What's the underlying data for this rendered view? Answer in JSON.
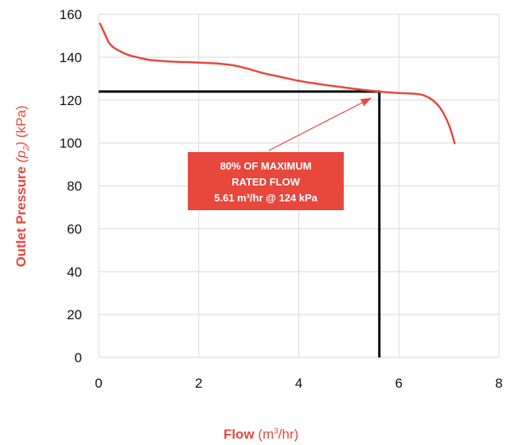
{
  "chart_data": {
    "type": "line",
    "xlabel_bold": "Flow",
    "xlabel_unit_pre": "(m",
    "xlabel_unit_sup": "3",
    "xlabel_unit_post": "/hr)",
    "ylabel_bold": "Outlet Pressure",
    "ylabel_sym_open": "(",
    "ylabel_sym_p": "p",
    "ylabel_sym_sub": "2",
    "ylabel_sym_close": ")",
    "ylabel_unit": "(kPa)",
    "xlim": [
      0,
      8
    ],
    "ylim": [
      0,
      160
    ],
    "x_ticks": [
      "0",
      "2",
      "4",
      "6",
      "8"
    ],
    "y_ticks": [
      "0",
      "20",
      "40",
      "60",
      "80",
      "100",
      "120",
      "140",
      "160"
    ],
    "grid": true,
    "series": [
      {
        "color": "#e8473c",
        "x": [
          0.02,
          0.1,
          0.2,
          0.3,
          0.45,
          0.6,
          0.8,
          1.0,
          1.3,
          1.6,
          2.0,
          2.4,
          2.7,
          3.0,
          3.3,
          3.6,
          4.0,
          4.4,
          4.8,
          5.2,
          5.6,
          6.0,
          6.3,
          6.5,
          6.7,
          6.85,
          7.0,
          7.12
        ],
        "y": [
          156,
          152,
          147,
          144.5,
          142.5,
          141,
          139.8,
          138.8,
          138.2,
          137.8,
          137.5,
          137,
          136.2,
          134.5,
          132.5,
          131,
          129,
          127.5,
          126.2,
          125,
          124,
          123.3,
          123,
          122.2,
          119.5,
          115.5,
          108.5,
          99.5
        ]
      }
    ],
    "reference_point": {
      "x": 5.61,
      "y": 124,
      "color": "#000000"
    },
    "annotation": {
      "lines": [
        "80% OF MAXIMUM",
        "RATED FLOW",
        "5.61 m³/hr @ 124 kPa"
      ],
      "background": "#e8473c",
      "pointer_x": 5.45,
      "pointer_y": 121
    }
  }
}
